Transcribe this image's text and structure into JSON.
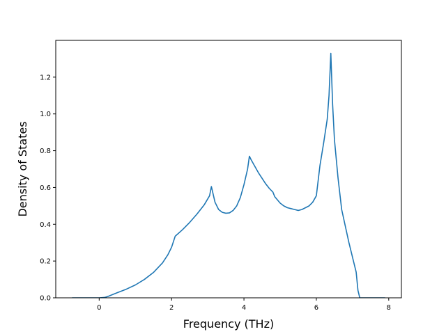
{
  "chart_data": {
    "type": "line",
    "title": "",
    "xlabel": "Frequency (THz)",
    "ylabel": "Density of States",
    "xlim": [
      -1.2,
      8.35
    ],
    "ylim": [
      0.0,
      1.4
    ],
    "xticks": [
      0,
      2,
      4,
      6,
      8
    ],
    "xtick_labels": [
      "0",
      "2",
      "4",
      "6",
      "8"
    ],
    "yticks": [
      0.0,
      0.2,
      0.4,
      0.6,
      0.8,
      1.0,
      1.2
    ],
    "ytick_labels": [
      "0.0",
      "0.2",
      "0.4",
      "0.6",
      "0.8",
      "1.0",
      "1.2"
    ],
    "grid": false,
    "line_color": "#1f77b4",
    "series": [
      {
        "x": [
          -0.75,
          -0.5,
          -0.25,
          0.0,
          0.15,
          0.25,
          0.35,
          0.5,
          0.75,
          1.0,
          1.25,
          1.5,
          1.75,
          1.9,
          2.0,
          2.1,
          2.3,
          2.5,
          2.7,
          2.9,
          3.05,
          3.1,
          3.2,
          3.3,
          3.4,
          3.5,
          3.6,
          3.7,
          3.8,
          3.9,
          4.0,
          4.1,
          4.15,
          4.2,
          4.3,
          4.4,
          4.5,
          4.6,
          4.7,
          4.8,
          4.85,
          5.0,
          5.1,
          5.2,
          5.3,
          5.4,
          5.5,
          5.6,
          5.7,
          5.8,
          5.9,
          6.0,
          6.1,
          6.2,
          6.3,
          6.35,
          6.4,
          6.45,
          6.5,
          6.6,
          6.7,
          6.8,
          6.9,
          7.0,
          7.1,
          7.15,
          7.2,
          7.25,
          7.9
        ],
        "y": [
          0.0,
          0.0,
          0.0,
          0.0,
          0.002,
          0.008,
          0.016,
          0.028,
          0.047,
          0.07,
          0.1,
          0.138,
          0.19,
          0.235,
          0.275,
          0.335,
          0.37,
          0.41,
          0.455,
          0.505,
          0.555,
          0.605,
          0.52,
          0.48,
          0.465,
          0.46,
          0.462,
          0.475,
          0.5,
          0.545,
          0.615,
          0.7,
          0.77,
          0.75,
          0.715,
          0.68,
          0.65,
          0.62,
          0.595,
          0.575,
          0.55,
          0.515,
          0.5,
          0.49,
          0.485,
          0.48,
          0.475,
          0.48,
          0.49,
          0.5,
          0.52,
          0.555,
          0.72,
          0.84,
          0.97,
          1.1,
          1.33,
          1.05,
          0.86,
          0.65,
          0.48,
          0.39,
          0.3,
          0.22,
          0.14,
          0.04,
          0.0,
          0.0,
          0.0
        ]
      }
    ]
  }
}
